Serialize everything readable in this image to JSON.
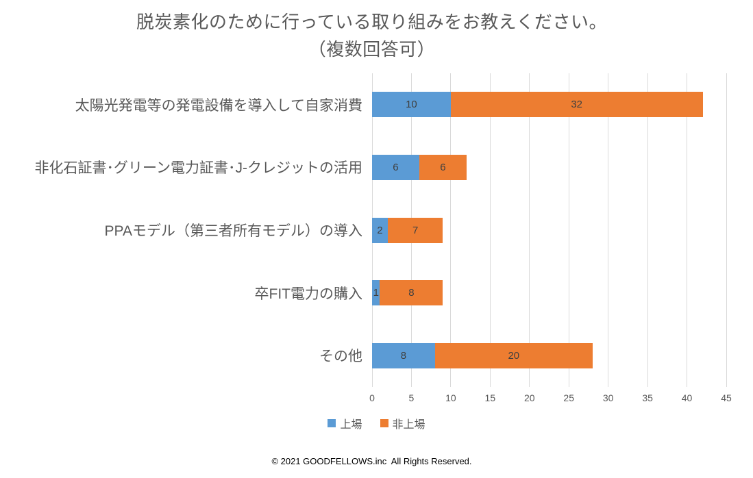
{
  "title": {
    "line1": "脱炭素化のために行っている取り組みをお教えください。",
    "line2": "（複数回答可）"
  },
  "chart_data": {
    "type": "bar",
    "orientation": "horizontal",
    "stacked": true,
    "title": "脱炭素化のために行っている取り組みをお教えください。（複数回答可）",
    "categories": [
      "太陽光発電等の発電設備を導入して自家消費",
      "非化石証書･グリーン電力証書･J-クレジットの活用",
      "PPAモデル（第三者所有モデル）の導入",
      "卒FIT電力の購入",
      "その他"
    ],
    "series": [
      {
        "name": "上場",
        "color": "#5b9bd5",
        "values": [
          10,
          6,
          2,
          1,
          8
        ]
      },
      {
        "name": "非上場",
        "color": "#ed7d31",
        "values": [
          32,
          6,
          7,
          8,
          20
        ]
      }
    ],
    "totals": [
      42,
      12,
      9,
      9,
      28
    ],
    "xlim": [
      0,
      45
    ],
    "x_ticks": [
      0,
      5,
      10,
      15,
      20,
      25,
      30,
      35,
      40,
      45
    ],
    "xlabel": "",
    "ylabel": "",
    "grid": true,
    "data_labels": true,
    "legend_position": "bottom"
  },
  "colors": {
    "series_listed": "#5b9bd5",
    "series_unlisted": "#ed7d31",
    "gridline": "#d9d9d9",
    "title_text": "#595959",
    "axis_text": "#595959",
    "data_label_text": "#404040"
  },
  "footer": {
    "copyright": "© 2021 GOODFELLOWS.inc  All Rights Reserved."
  }
}
